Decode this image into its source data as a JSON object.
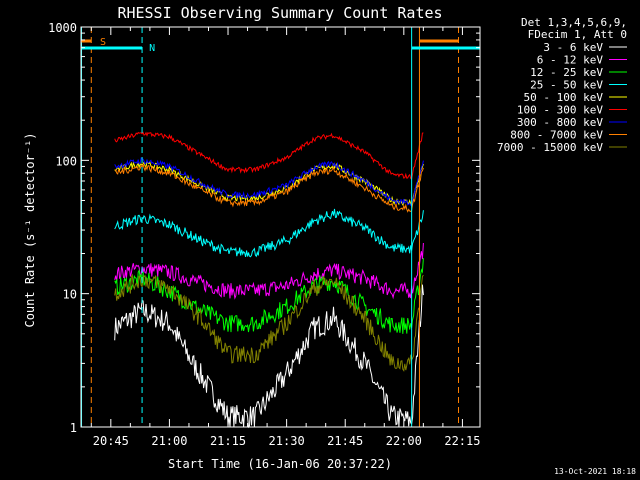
{
  "chart_data": {
    "type": "line",
    "title": "RHESSI Observing Summary Count Rates",
    "xlabel": "Start Time (16-Jan-06 20:37:22)",
    "ylabel": "Count Rate (s⁻¹ detector⁻¹)",
    "y_scale": "log",
    "ylim": [
      1,
      1000
    ],
    "xlim": [
      "20:37:22",
      "22:19:30"
    ],
    "x_ticks": [
      "20:45",
      "21:00",
      "21:15",
      "21:30",
      "21:45",
      "22:00",
      "22:15"
    ],
    "y_ticks": [
      "1",
      "10",
      "100",
      "1000"
    ],
    "legend_header": [
      "Det 1,3,4,5,6,9,",
      "FDecim 1, Att 0"
    ],
    "legend_placement": "right, outside plot",
    "timestamp": "13-Oct-2021 18:18",
    "markers": {
      "orange_label": "S",
      "cyan_label": "N",
      "orange_dashed_times": [
        "20:40",
        "22:14"
      ],
      "cyan_dashed_times": [
        "20:53"
      ],
      "cyan_solid_times": [
        "20:37:30",
        "22:02"
      ],
      "orange_solid_times": [
        "22:04"
      ]
    },
    "series": [
      {
        "name": "3 - 6 keV",
        "color": "#ffffff",
        "x": [
          "20:46",
          "20:53",
          "21:00",
          "21:06",
          "21:15",
          "21:22",
          "21:30",
          "21:37",
          "21:42",
          "21:50",
          "21:57",
          "22:02",
          "22:05"
        ],
        "y": [
          5.5,
          7.5,
          6,
          3,
          1.2,
          1.2,
          2.5,
          5.5,
          6.5,
          3,
          1.2,
          1.1,
          12
        ]
      },
      {
        "name": "6 - 12 keV",
        "color": "#ff00ff",
        "x": [
          "20:46",
          "20:53",
          "21:00",
          "21:08",
          "21:15",
          "21:22",
          "21:30",
          "21:37",
          "21:42",
          "21:50",
          "21:57",
          "22:02",
          "22:05"
        ],
        "y": [
          14,
          15.5,
          14.5,
          12,
          10.5,
          10.5,
          11.5,
          14,
          15,
          13,
          10.5,
          10.5,
          22
        ]
      },
      {
        "name": "12 - 25 keV",
        "color": "#00ff00",
        "x": [
          "20:46",
          "20:53",
          "21:00",
          "21:08",
          "21:15",
          "21:22",
          "21:30",
          "21:37",
          "21:42",
          "21:50",
          "21:57",
          "22:02",
          "22:05"
        ],
        "y": [
          11,
          13,
          10.5,
          7.5,
          6,
          6,
          8,
          11.5,
          12.5,
          8,
          5.8,
          5.8,
          18
        ]
      },
      {
        "name": "25 - 50 keV",
        "color": "#00ffff",
        "x": [
          "20:46",
          "20:53",
          "21:00",
          "21:08",
          "21:15",
          "21:22",
          "21:30",
          "21:37",
          "21:42",
          "21:50",
          "21:57",
          "22:02",
          "22:05"
        ],
        "y": [
          32,
          37,
          33,
          25,
          20.5,
          20.5,
          25,
          35,
          40,
          31,
          22,
          21.5,
          40
        ]
      },
      {
        "name": "50 - 100 keV",
        "color": "#ffff00",
        "x": [
          "20:46",
          "20:53",
          "21:00",
          "21:08",
          "21:15",
          "21:22",
          "21:30",
          "21:37",
          "21:42",
          "21:50",
          "21:57",
          "22:02",
          "22:05"
        ],
        "y": [
          85,
          95,
          85,
          65,
          52,
          52,
          62,
          85,
          92,
          70,
          50,
          48,
          95
        ]
      },
      {
        "name": "100 - 300 keV",
        "color": "#ff0000",
        "x": [
          "20:46",
          "20:53",
          "21:00",
          "21:08",
          "21:15",
          "21:22",
          "21:30",
          "21:37",
          "21:42",
          "21:50",
          "21:57",
          "22:02",
          "22:05"
        ],
        "y": [
          140,
          160,
          150,
          110,
          85,
          85,
          105,
          145,
          155,
          115,
          78,
          75,
          165
        ]
      },
      {
        "name": "300 - 800 keV",
        "color": "#0000ff",
        "x": [
          "20:46",
          "20:53",
          "21:00",
          "21:08",
          "21:15",
          "21:22",
          "21:30",
          "21:37",
          "21:42",
          "21:50",
          "21:57",
          "22:02",
          "22:05"
        ],
        "y": [
          90,
          100,
          90,
          68,
          55,
          55,
          65,
          88,
          95,
          70,
          50,
          48,
          100
        ]
      },
      {
        "name": "800 - 7000 keV",
        "color": "#ff8000",
        "x": [
          "20:46",
          "20:53",
          "21:00",
          "21:08",
          "21:15",
          "21:22",
          "21:30",
          "21:37",
          "21:42",
          "21:50",
          "21:57",
          "22:02",
          "22:05"
        ],
        "y": [
          80,
          90,
          80,
          60,
          48,
          48,
          58,
          80,
          85,
          62,
          45,
          43,
          90
        ]
      },
      {
        "name": "7000 - 15000 keV",
        "color": "#808000",
        "x": [
          "20:46",
          "20:53",
          "21:00",
          "21:08",
          "21:15",
          "21:22",
          "21:30",
          "21:37",
          "21:42",
          "21:50",
          "21:57",
          "22:02",
          "22:05"
        ],
        "y": [
          10,
          13,
          11,
          6.5,
          3.5,
          3.5,
          6,
          11,
          12.5,
          6.5,
          3,
          3,
          15
        ]
      }
    ]
  }
}
